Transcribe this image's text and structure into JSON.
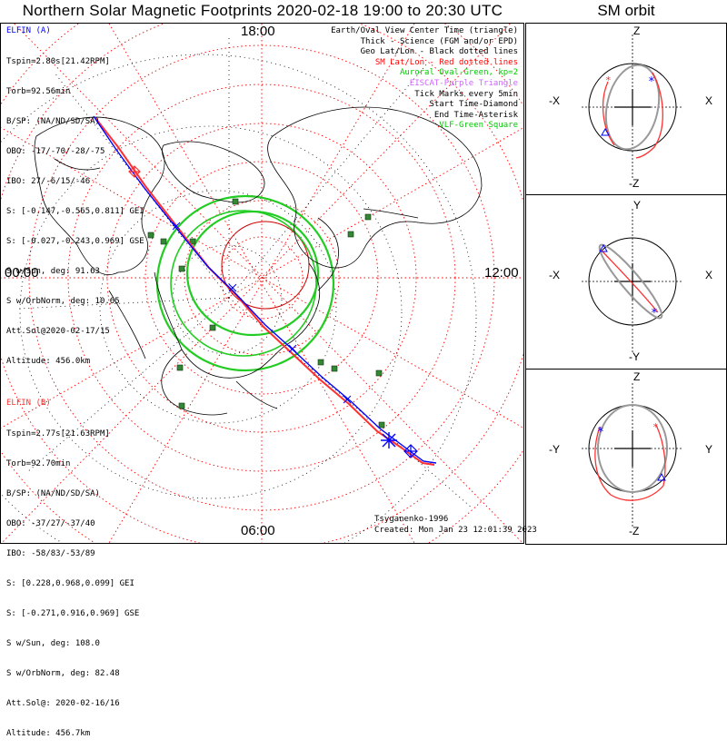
{
  "header": {
    "title": "Northern Solar Magnetic Footprints 2020-02-18 19:00 to 20:30 UTC",
    "orbit_title": "SM orbit"
  },
  "lt_labels": {
    "top": "18:00",
    "left": "00:00",
    "right": "12:00",
    "bottom": "06:00"
  },
  "elfin_a": {
    "name": "ELFIN (A)",
    "color": "#0000ff",
    "lines": [
      "Tspin=2.80s[21.42RPM]",
      "Torb=92.56min",
      "B/SP: (NA/ND/SD/SA)",
      "OBO: -17/-70/-28/-75",
      "IBO: 27/-6/15/-46",
      "S: [-0.147,-0.565,0.811] GEI",
      "S: [-0.027,-0.243,0.969] GSE",
      "S w/Sun, deg: 91.63",
      "S w/OrbNorm, deg: 10.65",
      "Att.Sol@2020-02-17/15",
      "Altitude: 456.0km"
    ]
  },
  "elfin_b": {
    "name": "ELFIN (B)",
    "color": "#ff3030",
    "lines": [
      "Tspin=2.77s[21.63RPM]",
      "Torb=92.70min",
      "B/SP: (NA/ND/SD/SA)",
      "OBO: -37/27/-37/40",
      "IBO: -58/83/-53/89",
      "S: [0.228,0.968,0.099] GEI",
      "S: [-0.271,0.916,0.969] GSE",
      "S w/Sun, deg: 108.0",
      "S w/OrbNorm, deg: 82.48",
      "Att.Sol@: 2020-02-16/16",
      "Altitude: 456.7km"
    ]
  },
  "legend": [
    {
      "text": "Earth/Oval View Center Time (triangle)",
      "color": "#000000"
    },
    {
      "text": "Thick - Science (FGM and/or EPD)",
      "color": "#000000"
    },
    {
      "text": "Geo Lat/Lon - Black dotted lines",
      "color": "#000000"
    },
    {
      "text": "SM Lat/Lon - Red dotted lines",
      "color": "#ff0000"
    },
    {
      "text": "Auroral Oval-Green, kp=2",
      "color": "#00cc00"
    },
    {
      "text": "EISCAT-Purple Triangle",
      "color": "#cc66ff"
    },
    {
      "text": "Tick Marks every 5min",
      "color": "#000000"
    },
    {
      "text": "Start Time-Diamond",
      "color": "#000000"
    },
    {
      "text": "End Time-Asterisk",
      "color": "#000000"
    },
    {
      "text": "VLF-Green Square",
      "color": "#00cc00"
    }
  ],
  "footer": {
    "credit": "Tsyganenko-1996",
    "created": "Created: Mon Jan 23 12:01:39 2023"
  },
  "orbit_panels": [
    {
      "top": "Z",
      "bottom": "-Z",
      "left": "-X",
      "right": "X"
    },
    {
      "top": "Y",
      "bottom": "-Y",
      "left": "-X",
      "right": "X"
    },
    {
      "top": "Z",
      "bottom": "-Z",
      "left": "-Y",
      "right": "Y"
    }
  ],
  "colors": {
    "track_a": "#0000ff",
    "track_b": "#ff3030",
    "sm_grid": "#ff0000",
    "oval": "#22cc22",
    "vlf": "#338833",
    "land": "#000000"
  }
}
